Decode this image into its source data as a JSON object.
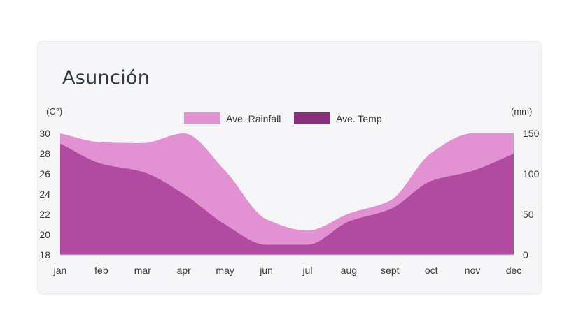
{
  "chart_data": {
    "type": "area",
    "title": "Asunción",
    "x": [
      "jan",
      "feb",
      "mar",
      "apr",
      "may",
      "jun",
      "jul",
      "aug",
      "sept",
      "oct",
      "nov",
      "dec"
    ],
    "left_axis_label": "(C°)",
    "right_axis_label": "(mm)",
    "left_ylim": [
      18,
      30
    ],
    "right_ylim": [
      0,
      150
    ],
    "left_ticks": [
      18,
      20,
      22,
      24,
      26,
      28,
      30
    ],
    "right_ticks": [
      0,
      50,
      100,
      150
    ],
    "series": [
      {
        "name": "Ave. Rainfall",
        "axis": "right",
        "color": "#e292d3",
        "values": [
          150,
          139,
          138,
          150,
          104,
          44,
          30,
          51,
          67,
          126,
          150,
          150
        ]
      },
      {
        "name": "Ave. Temp",
        "axis": "left",
        "color": "#b14ba2",
        "values": [
          29,
          27,
          26.2,
          24,
          21,
          19,
          19,
          21.3,
          22.5,
          25.3,
          26.3,
          28
        ]
      }
    ],
    "legend": {
      "placement": "top-center",
      "items": [
        {
          "label": "Ave. Rainfall",
          "color": "#e292d3"
        },
        {
          "label": "Ave. Temp",
          "color": "#8a2f7c"
        }
      ]
    },
    "grid": false
  }
}
